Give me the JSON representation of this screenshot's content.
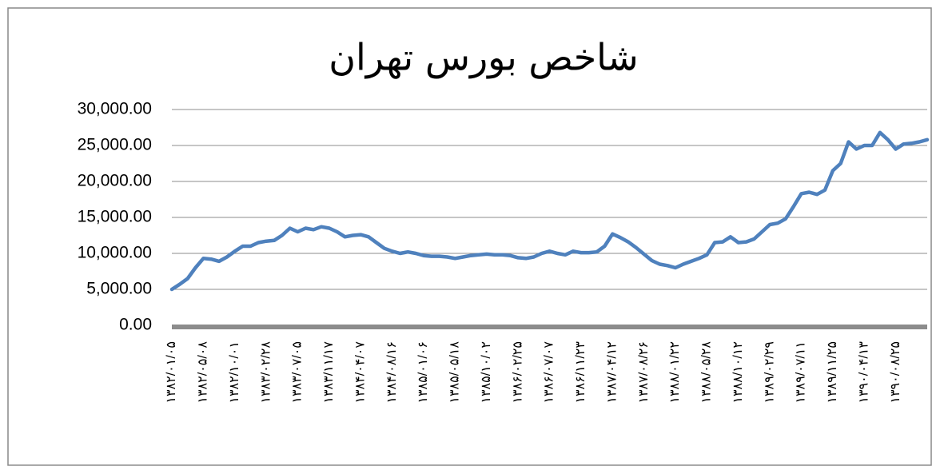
{
  "chart_data": {
    "type": "line",
    "title": "شاخص بورس تهران",
    "categories": [
      "۱۳۸۲/۰۱/۰۵",
      null,
      null,
      null,
      "۱۳۸۲/۰۵/۰۸",
      null,
      null,
      null,
      "۱۳۸۲/۱۰/۰۱",
      null,
      null,
      null,
      "۱۳۸۳/۰۲/۲۸",
      null,
      null,
      null,
      "۱۳۸۳/۰۷/۰۵",
      null,
      null,
      null,
      "۱۳۸۳/۱۱/۱۷",
      null,
      null,
      null,
      "۱۳۸۴/۰۴/۰۷",
      null,
      null,
      null,
      "۱۳۸۴/۰۸/۱۶",
      null,
      null,
      null,
      "۱۳۸۵/۰۱/۰۶",
      null,
      null,
      null,
      "۱۳۸۵/۰۵/۱۸",
      null,
      null,
      null,
      "۱۳۸۵/۱۰/۰۲",
      null,
      null,
      null,
      "۱۳۸۶/۰۲/۲۵",
      null,
      null,
      null,
      "۱۳۸۶/۰۷/۰۷",
      null,
      null,
      null,
      "۱۳۸۶/۱۱/۲۳",
      null,
      null,
      null,
      "۱۳۸۷/۰۴/۱۲",
      null,
      null,
      null,
      "۱۳۸۷/۰۸/۲۶",
      null,
      null,
      null,
      "۱۳۸۸/۰۱/۲۲",
      null,
      null,
      null,
      "۱۳۸۸/۰۵/۲۸",
      null,
      null,
      null,
      "۱۳۸۸/۱۰/۱۲",
      null,
      null,
      null,
      "۱۳۸۹/۰۲/۲۹",
      null,
      null,
      null,
      "۱۳۸۹/۰۷/۱۱",
      null,
      null,
      null,
      "۱۳۸۹/۱۱/۲۵",
      null,
      null,
      null,
      "۱۳۹۰/۰۴/۱۳",
      null,
      null,
      null,
      "۱۳۹۰/۰۸/۲۵",
      null,
      null,
      null,
      null
    ],
    "values": [
      5000,
      5700,
      6500,
      8000,
      9300,
      9200,
      8900,
      9500,
      10300,
      11000,
      11000,
      11500,
      11700,
      11800,
      12500,
      13500,
      13000,
      13500,
      13300,
      13700,
      13500,
      13000,
      12300,
      12500,
      12600,
      12300,
      11500,
      10700,
      10300,
      10000,
      10200,
      10000,
      9700,
      9600,
      9600,
      9500,
      9300,
      9500,
      9700,
      9800,
      9900,
      9800,
      9800,
      9700,
      9400,
      9300,
      9500,
      10000,
      10300,
      10000,
      9800,
      10300,
      10100,
      10100,
      10200,
      11000,
      12700,
      12200,
      11600,
      10800,
      9900,
      9000,
      8500,
      8300,
      8000,
      8500,
      8900,
      9300,
      9800,
      11500,
      11600,
      12300,
      11500,
      11600,
      12000,
      13000,
      14000,
      14200,
      14800,
      16500,
      18300,
      18500,
      18200,
      18800,
      21500,
      22500,
      25500,
      24500,
      25000,
      25000,
      26800,
      25800,
      24500,
      25200,
      25300,
      25500,
      25800
    ],
    "color": "#4f81bd",
    "ylim": [
      0,
      30000
    ],
    "yticks": [
      {
        "value": 0,
        "label": "0.00"
      },
      {
        "value": 5000,
        "label": "5,000.00"
      },
      {
        "value": 10000,
        "label": "10,000.00"
      },
      {
        "value": 15000,
        "label": "15,000.00"
      },
      {
        "value": 20000,
        "label": "20,000.00"
      },
      {
        "value": 25000,
        "label": "25,000.00"
      },
      {
        "value": 30000,
        "label": "30,000.00"
      }
    ],
    "grid": true
  }
}
